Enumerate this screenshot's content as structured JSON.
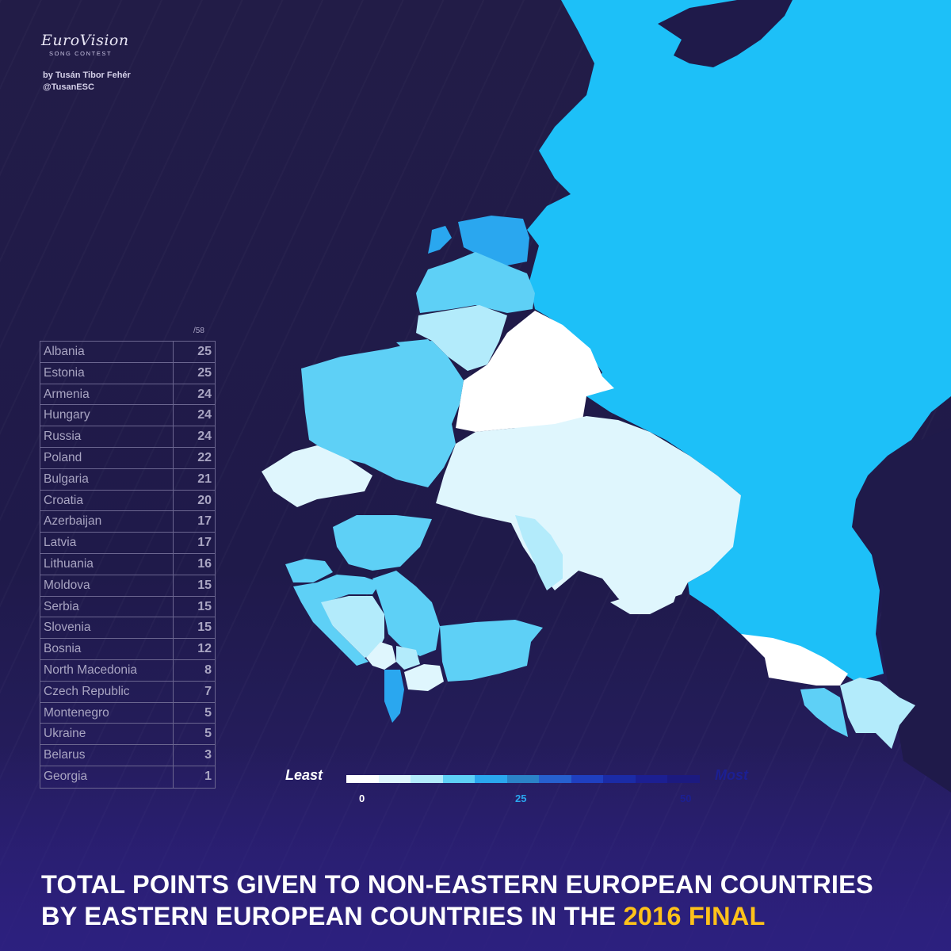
{
  "logo": {
    "main": "EuroVision",
    "sub": "SONG CONTEST"
  },
  "credit": {
    "author": "by Tusán Tibor Fehér",
    "handle": "@TusanESC"
  },
  "table": {
    "max_label": "/58",
    "rows": [
      {
        "country": "Albania",
        "points": "25"
      },
      {
        "country": "Estonia",
        "points": "25"
      },
      {
        "country": "Armenia",
        "points": "24"
      },
      {
        "country": "Hungary",
        "points": "24"
      },
      {
        "country": "Russia",
        "points": "24"
      },
      {
        "country": "Poland",
        "points": "22"
      },
      {
        "country": "Bulgaria",
        "points": "21"
      },
      {
        "country": "Croatia",
        "points": "20"
      },
      {
        "country": "Azerbaijan",
        "points": "17"
      },
      {
        "country": "Latvia",
        "points": "17"
      },
      {
        "country": "Lithuania",
        "points": "16"
      },
      {
        "country": "Moldova",
        "points": "15"
      },
      {
        "country": "Serbia",
        "points": "15"
      },
      {
        "country": "Slovenia",
        "points": "15"
      },
      {
        "country": "Bosnia",
        "points": "12"
      },
      {
        "country": "North Macedonia",
        "points": "8"
      },
      {
        "country": "Czech Republic",
        "points": "7"
      },
      {
        "country": "Montenegro",
        "points": "5"
      },
      {
        "country": "Ukraine",
        "points": "5"
      },
      {
        "country": "Belarus",
        "points": "3"
      },
      {
        "country": "Georgia",
        "points": "1"
      }
    ]
  },
  "legend": {
    "least": "Least",
    "most": "Most",
    "ticks": [
      "0",
      "25",
      "50"
    ],
    "scale_colors": [
      "#ffffff",
      "#dff6fd",
      "#b3ebfb",
      "#5ed0f6",
      "#2aa7ef",
      "#2b83c8",
      "#2660cf",
      "#1f3fc0",
      "#1b2ba6",
      "#1c1f92",
      "#1c1a80"
    ]
  },
  "colors": {
    "background": "#221c47",
    "sea": "#1f1a4a",
    "accent_yellow": "#ffc21a"
  },
  "title": {
    "line1": "TOTAL POINTS GIVEN TO NON-EASTERN EUROPEAN COUNTRIES",
    "line2_prefix": "BY EASTERN EUROPEAN COUNTRIES IN THE ",
    "line2_highlight": "2016 FINAL"
  }
}
